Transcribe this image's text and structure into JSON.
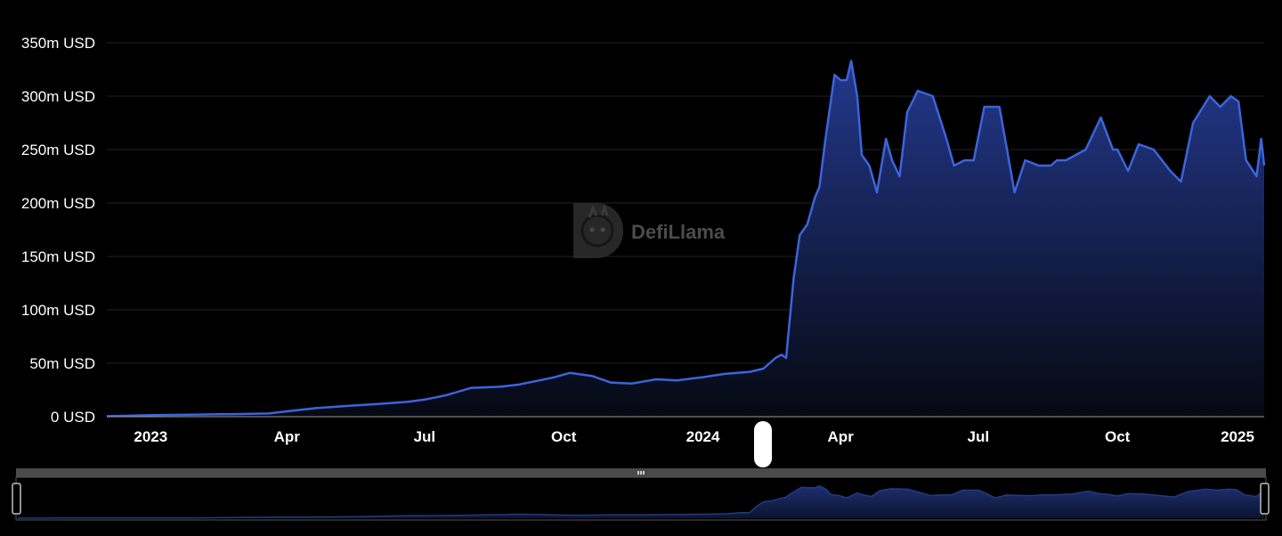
{
  "watermark": {
    "text": "DefiLlama",
    "logo_icon": "llama-logo-icon"
  },
  "colors": {
    "background": "#000000",
    "line": "#3c64dc",
    "area_top": "#23388c",
    "grid": "#222222",
    "axis_text": "#ffffff",
    "slider_bg": "#4a4a4a"
  },
  "chart_data": {
    "type": "area",
    "title": "",
    "xlabel": "",
    "ylabel": "",
    "unit": "USD",
    "ylim": [
      0,
      350000000
    ],
    "xlim": [
      "2022-12-03",
      "2025-01-06"
    ],
    "grid": true,
    "legend": "none",
    "y_ticks": [
      "0 USD",
      "50m USD",
      "100m USD",
      "150m USD",
      "200m USD",
      "250m USD",
      "300m USD",
      "350m USD"
    ],
    "x_ticks": [
      {
        "label": "2023",
        "date": "2023-01-01",
        "major": true
      },
      {
        "label": "Apr",
        "date": "2023-04-01",
        "major": false
      },
      {
        "label": "Jul",
        "date": "2023-07-01",
        "major": false
      },
      {
        "label": "Oct",
        "date": "2023-10-01",
        "major": false
      },
      {
        "label": "2024",
        "date": "2024-01-01",
        "major": true
      },
      {
        "label": "Apr",
        "date": "2024-04-01",
        "major": false
      },
      {
        "label": "Jul",
        "date": "2024-07-01",
        "major": false
      },
      {
        "label": "Oct",
        "date": "2024-10-01",
        "major": false
      },
      {
        "label": "2025",
        "date": "2025-01-01",
        "major": true
      }
    ],
    "series": [
      {
        "x": [
          "2022-12-03",
          "2022-12-15",
          "2023-01-01",
          "2023-02-01",
          "2023-03-01",
          "2023-03-20",
          "2023-04-01",
          "2023-04-20",
          "2023-05-10",
          "2023-06-01",
          "2023-06-20",
          "2023-07-01",
          "2023-07-15",
          "2023-08-01",
          "2023-08-20",
          "2023-09-01",
          "2023-09-15",
          "2023-09-25",
          "2023-10-05",
          "2023-10-20",
          "2023-11-01",
          "2023-11-15",
          "2023-12-01",
          "2023-12-15",
          "2024-01-01",
          "2024-01-15",
          "2024-02-01",
          "2024-02-10",
          "2024-02-18",
          "2024-02-22",
          "2024-02-25",
          "2024-03-01",
          "2024-03-05",
          "2024-03-10",
          "2024-03-15",
          "2024-03-18",
          "2024-03-22",
          "2024-03-28",
          "2024-04-01",
          "2024-04-05",
          "2024-04-08",
          "2024-04-12",
          "2024-04-15",
          "2024-04-20",
          "2024-04-25",
          "2024-05-01",
          "2024-05-05",
          "2024-05-10",
          "2024-05-15",
          "2024-05-22",
          "2024-06-01",
          "2024-06-10",
          "2024-06-15",
          "2024-06-22",
          "2024-06-28",
          "2024-07-05",
          "2024-07-15",
          "2024-07-25",
          "2024-08-01",
          "2024-08-10",
          "2024-08-18",
          "2024-08-22",
          "2024-08-28",
          "2024-09-10",
          "2024-09-20",
          "2024-09-28",
          "2024-10-01",
          "2024-10-08",
          "2024-10-15",
          "2024-10-25",
          "2024-11-05",
          "2024-11-12",
          "2024-11-20",
          "2024-12-01",
          "2024-12-08",
          "2024-12-15",
          "2024-12-20",
          "2024-12-25",
          "2025-01-01",
          "2025-01-04",
          "2025-01-06"
        ],
        "values": [
          500000,
          800000,
          1500000,
          2000000,
          2500000,
          3000000,
          5000000,
          8000000,
          10000000,
          12000000,
          14000000,
          16000000,
          20000000,
          27000000,
          28000000,
          30000000,
          34000000,
          37000000,
          41000000,
          38000000,
          32000000,
          31000000,
          35000000,
          34000000,
          37000000,
          40000000,
          42000000,
          45000000,
          55000000,
          58000000,
          55000000,
          130000000,
          170000000,
          180000000,
          205000000,
          215000000,
          260000000,
          320000000,
          315000000,
          315000000,
          333000000,
          300000000,
          245000000,
          235000000,
          210000000,
          260000000,
          240000000,
          225000000,
          285000000,
          305000000,
          300000000,
          260000000,
          235000000,
          240000000,
          240000000,
          290000000,
          290000000,
          210000000,
          240000000,
          235000000,
          235000000,
          240000000,
          240000000,
          250000000,
          280000000,
          250000000,
          250000000,
          230000000,
          255000000,
          250000000,
          230000000,
          220000000,
          275000000,
          300000000,
          290000000,
          300000000,
          295000000,
          240000000,
          225000000,
          260000000,
          235000000
        ]
      }
    ]
  }
}
